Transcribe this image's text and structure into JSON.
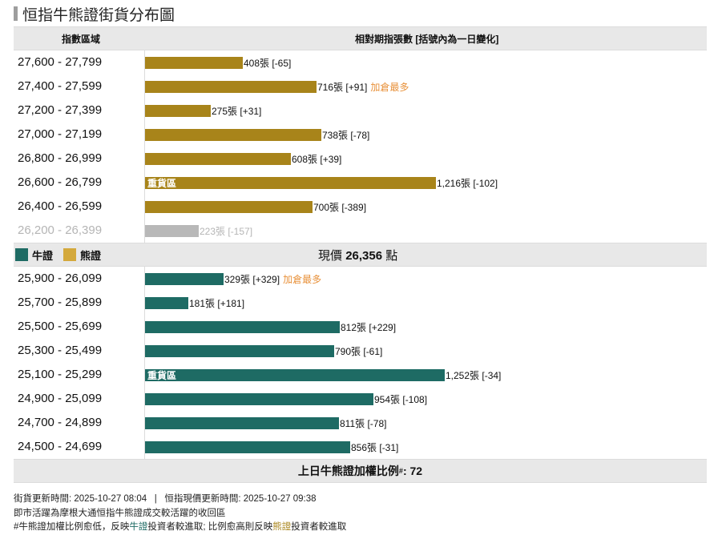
{
  "title": "恒指牛熊證街貨分布圖",
  "header": {
    "col_range": "指數區域",
    "col_count": "相對期指張數 [括號內為一日變化]"
  },
  "colors": {
    "bear": "#a8841a",
    "bull": "#1e6b64",
    "faded": "#b8b8b8",
    "tag": "#e8913a",
    "legend_bear": "#d4a93c"
  },
  "legend": {
    "bull": "牛證",
    "bear": "熊證"
  },
  "current_price": {
    "label": "現價",
    "value": "26,356",
    "unit": "點"
  },
  "bear_rows": [
    {
      "range": "27,600 - 27,799",
      "count": 408,
      "text": "408張 [-65]",
      "tag": "",
      "heavy": ""
    },
    {
      "range": "27,400 - 27,599",
      "count": 716,
      "text": "716張 [+91]",
      "tag": "加倉最多",
      "heavy": ""
    },
    {
      "range": "27,200 - 27,399",
      "count": 275,
      "text": "275張 [+31]",
      "tag": "",
      "heavy": ""
    },
    {
      "range": "27,000 - 27,199",
      "count": 738,
      "text": "738張 [-78]",
      "tag": "",
      "heavy": ""
    },
    {
      "range": "26,800 - 26,999",
      "count": 608,
      "text": "608張 [+39]",
      "tag": "",
      "heavy": ""
    },
    {
      "range": "26,600 - 26,799",
      "count": 1216,
      "text": "1,216張 [-102]",
      "tag": "",
      "heavy": "重貨區"
    },
    {
      "range": "26,400 - 26,599",
      "count": 700,
      "text": "700張 [-389]",
      "tag": "",
      "heavy": ""
    },
    {
      "range": "26,200 - 26,399",
      "count": 223,
      "text": "223張 [-157]",
      "tag": "",
      "heavy": "",
      "faded": true
    }
  ],
  "bull_rows": [
    {
      "range": "25,900 - 26,099",
      "count": 329,
      "text": "329張 [+329]",
      "tag": "加倉最多",
      "heavy": ""
    },
    {
      "range": "25,700 - 25,899",
      "count": 181,
      "text": "181張 [+181]",
      "tag": "",
      "heavy": ""
    },
    {
      "range": "25,500 - 25,699",
      "count": 812,
      "text": "812張 [+229]",
      "tag": "",
      "heavy": ""
    },
    {
      "range": "25,300 - 25,499",
      "count": 790,
      "text": "790張 [-61]",
      "tag": "",
      "heavy": ""
    },
    {
      "range": "25,100 - 25,299",
      "count": 1252,
      "text": "1,252張 [-34]",
      "tag": "",
      "heavy": "重貨區"
    },
    {
      "range": "24,900 - 25,099",
      "count": 954,
      "text": "954張 [-108]",
      "tag": "",
      "heavy": ""
    },
    {
      "range": "24,700 - 24,899",
      "count": 811,
      "text": "811張 [-78]",
      "tag": "",
      "heavy": ""
    },
    {
      "range": "24,500 - 24,699",
      "count": 856,
      "text": "856張 [-31]",
      "tag": "",
      "heavy": ""
    }
  ],
  "ratio": {
    "label": "上日牛熊證加權比例",
    "sup": "#",
    "value": ": 72"
  },
  "footer": {
    "line1": "街貨更新時間: 2025-10-27 08:04   |   恒指現價更新時間: 2025-10-27 09:38",
    "line2": "即市活躍為摩根大通恒指牛熊證成交較活躍的收回區",
    "line3_a": "#牛熊證加權比例愈低，反映",
    "line3_bull": "牛證",
    "line3_b": "投資者較進取; 比例愈高則反映",
    "line3_bear": "熊證",
    "line3_c": "投資者較進取"
  },
  "chart_data": {
    "type": "bar",
    "title": "恒指牛熊證街貨分布圖",
    "xlabel": "相對期指張數 [括號內為一日變化]",
    "ylabel": "指數區域",
    "current_price": 26356,
    "series": [
      {
        "name": "熊證",
        "categories": [
          "27,600 - 27,799",
          "27,400 - 27,599",
          "27,200 - 27,399",
          "27,000 - 27,199",
          "26,800 - 26,999",
          "26,600 - 26,799",
          "26,400 - 26,599",
          "26,200 - 26,399"
        ],
        "values": [
          408,
          716,
          275,
          738,
          608,
          1216,
          700,
          223
        ],
        "changes": [
          -65,
          91,
          31,
          -78,
          39,
          -102,
          -389,
          -157
        ]
      },
      {
        "name": "牛證",
        "categories": [
          "25,900 - 26,099",
          "25,700 - 25,899",
          "25,500 - 25,699",
          "25,300 - 25,499",
          "25,100 - 25,299",
          "24,900 - 25,099",
          "24,700 - 24,899",
          "24,500 - 24,699"
        ],
        "values": [
          329,
          181,
          812,
          790,
          1252,
          954,
          811,
          856
        ],
        "changes": [
          329,
          181,
          229,
          -61,
          -34,
          -108,
          -78,
          -31
        ]
      }
    ],
    "annotations": [
      "27,400 - 27,599: 加倉最多",
      "26,600 - 26,799: 重貨區",
      "25,900 - 26,099: 加倉最多",
      "25,100 - 25,299: 重貨區"
    ],
    "weighted_ratio": 72
  }
}
